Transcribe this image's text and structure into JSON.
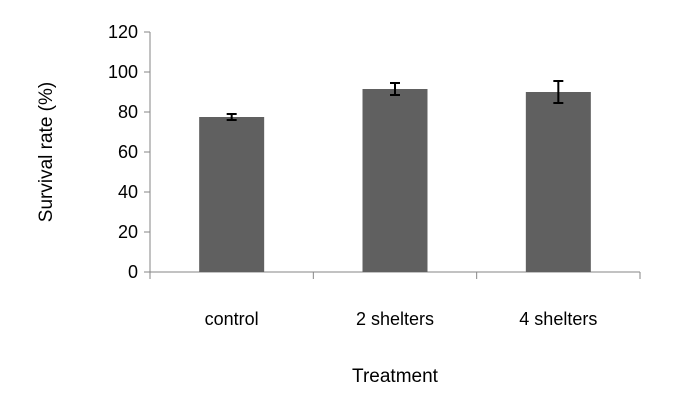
{
  "chart_data": {
    "type": "bar",
    "categories": [
      "control",
      "2 shelters",
      "4 shelters"
    ],
    "values": [
      77.5,
      91.5,
      90
    ],
    "error": [
      1.5,
      3,
      5.5
    ],
    "xlabel": "Treatment",
    "ylabel": "Survival rate (%)",
    "ylim": [
      0,
      120
    ],
    "yticks": [
      "0",
      "20",
      "40",
      "60",
      "80",
      "100",
      "120"
    ],
    "grid": false,
    "legend": "none",
    "colors": {
      "bar": "#606060",
      "axis": "#868686",
      "error_bar": "#000000"
    }
  }
}
